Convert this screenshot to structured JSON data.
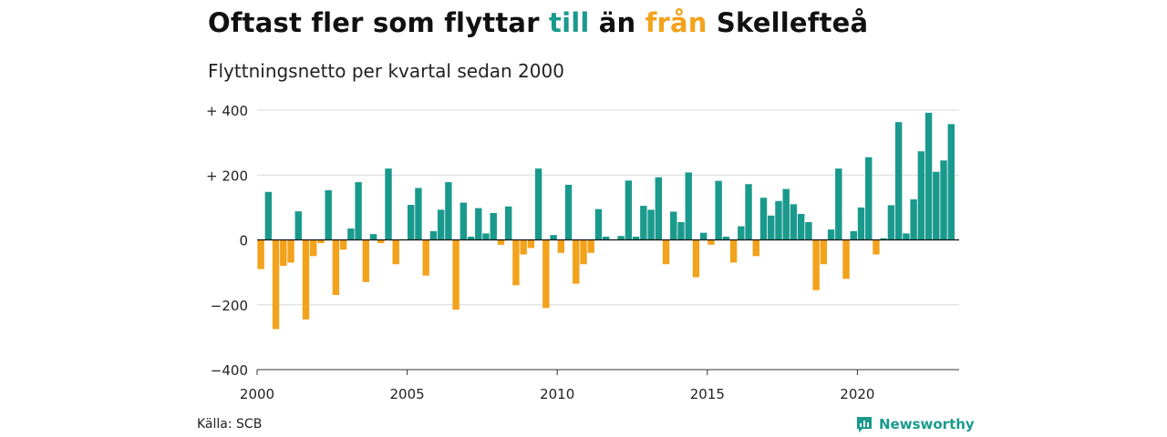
{
  "header": {
    "title_before": "Oftast fler som flyttar ",
    "title_till": "till",
    "title_middle": " än ",
    "title_fran": "från",
    "title_after": " Skellefteå",
    "subtitle": "Flyttningsnetto per kvartal sedan 2000"
  },
  "footer": {
    "source": "Källa: SCB",
    "brand": "Newsworthy"
  },
  "colors": {
    "positive": "#1a9a8d",
    "negative": "#f2a21b",
    "grid": "#d9d9d9",
    "axis": "#333333"
  },
  "chart_data": {
    "type": "bar",
    "title": "Oftast fler som flyttar till än från Skellefteå",
    "subtitle": "Flyttningsnetto per kvartal sedan 2000",
    "xlabel": "",
    "ylabel": "",
    "x_start_year": 2000,
    "periods_per_year": 4,
    "ylim": [
      -400,
      400
    ],
    "y_ticks": [
      400,
      200,
      0,
      -200,
      -400
    ],
    "y_tick_labels": [
      "+ 400",
      "+ 200",
      "0",
      "−200",
      "−400"
    ],
    "x_ticks": [
      2000,
      2005,
      2010,
      2015,
      2020
    ],
    "x_tick_labels": [
      "2000",
      "2005",
      "2010",
      "2015",
      "2020"
    ],
    "grid": true,
    "values": [
      -90,
      148,
      -275,
      -80,
      -70,
      88,
      -245,
      -50,
      -10,
      153,
      -170,
      -30,
      35,
      178,
      -130,
      18,
      -10,
      220,
      -75,
      0,
      108,
      160,
      -110,
      27,
      93,
      178,
      -215,
      115,
      10,
      98,
      20,
      83,
      -15,
      103,
      -140,
      -45,
      -25,
      220,
      -210,
      15,
      -40,
      170,
      -135,
      -75,
      -40,
      95,
      10,
      0,
      12,
      183,
      10,
      105,
      93,
      193,
      -75,
      87,
      55,
      208,
      -115,
      22,
      -15,
      182,
      10,
      -70,
      42,
      172,
      -50,
      130,
      75,
      120,
      157,
      110,
      80,
      55,
      -155,
      -75,
      32,
      220,
      -120,
      27,
      100,
      255,
      -45,
      5,
      107,
      363,
      20,
      125,
      273,
      392,
      210,
      245,
      357
    ]
  }
}
